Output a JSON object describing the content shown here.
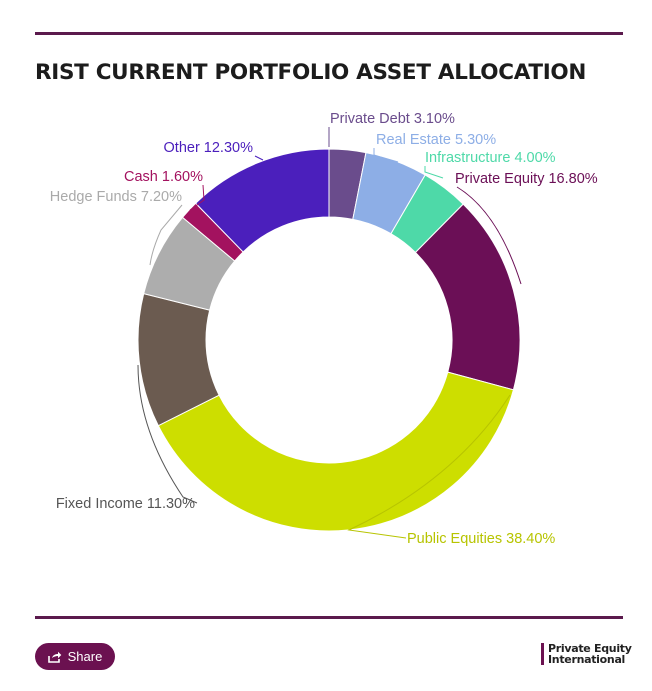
{
  "header": {
    "title": "RIST CURRENT PORTFOLIO ASSET ALLOCATION"
  },
  "chart_data": {
    "type": "pie",
    "donut": true,
    "title": "RIST CURRENT PORTFOLIO ASSET ALLOCATION",
    "slices": [
      {
        "label": "Private Debt 3.10%",
        "value": 3.1,
        "color": "#6a4c8c"
      },
      {
        "label": "Real Estate 5.30%",
        "value": 5.3,
        "color": "#8daee6"
      },
      {
        "label": "Infrastructure 4.00%",
        "value": 4.0,
        "color": "#4ed9a8"
      },
      {
        "label": "Private Equity 16.80%",
        "value": 16.8,
        "color": "#6b0f56"
      },
      {
        "label": "Public Equities 38.40%",
        "value": 38.4,
        "color": "#cdde00"
      },
      {
        "label": "Fixed Income 11.30%",
        "value": 11.3,
        "color": "#6b5b50"
      },
      {
        "label": "Hedge Funds 7.20%",
        "value": 7.2,
        "color": "#adadad"
      },
      {
        "label": "Cash 1.60%",
        "value": 1.6,
        "color": "#a3125f"
      },
      {
        "label": "Other 12.30%",
        "value": 12.3,
        "color": "#4b1fbc"
      }
    ],
    "label_colors": [
      "#6a4c8c",
      "#8daee6",
      "#4ed9a8",
      "#6b0f56",
      "#b7c400",
      "#555555",
      "#aaaaaa",
      "#a3125f",
      "#4b1fbc"
    ]
  },
  "footer": {
    "share_label": "Share",
    "share_icon": "share-icon",
    "brand_line1": "Private Equity",
    "brand_line2": "International"
  }
}
